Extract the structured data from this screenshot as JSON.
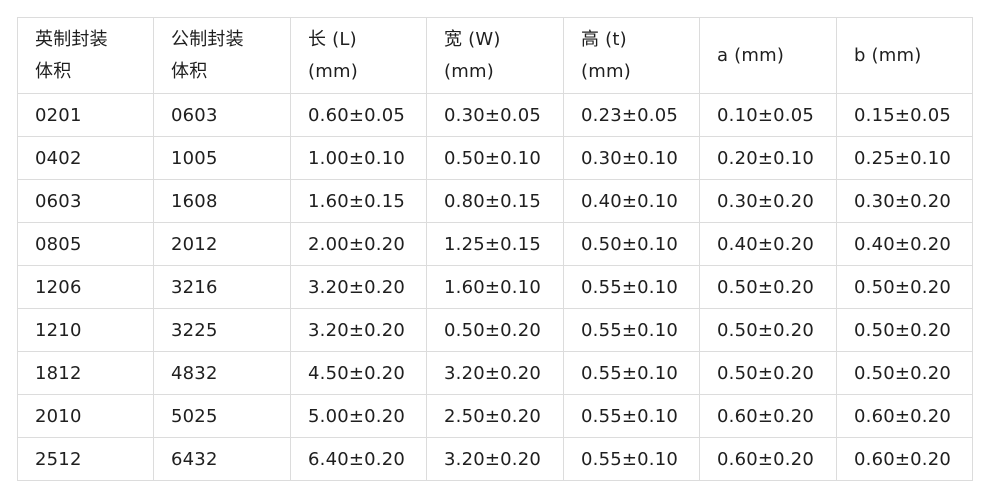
{
  "table": {
    "headers": [
      "英制封装\n体积",
      "公制封装\n体积",
      "长 (L)\n  (mm)",
      "宽 (W)\n  (mm)",
      "高 (t)\n  (mm)",
      "a (mm)",
      "b (mm)"
    ],
    "rows": [
      [
        "0201",
        "0603",
        "0.60±0.05",
        "0.30±0.05",
        "0.23±0.05",
        "0.10±0.05",
        "0.15±0.05"
      ],
      [
        "0402",
        "1005",
        "1.00±0.10",
        "0.50±0.10",
        "0.30±0.10",
        "0.20±0.10",
        "0.25±0.10"
      ],
      [
        "0603",
        "1608",
        "1.60±0.15",
        "0.80±0.15",
        "0.40±0.10",
        "0.30±0.20",
        "0.30±0.20"
      ],
      [
        "0805",
        "2012",
        "2.00±0.20",
        "1.25±0.15",
        "0.50±0.10",
        "0.40±0.20",
        "0.40±0.20"
      ],
      [
        "1206",
        "3216",
        "3.20±0.20",
        "1.60±0.10",
        "0.55±0.10",
        "0.50±0.20",
        "0.50±0.20"
      ],
      [
        "1210",
        "3225",
        "3.20±0.20",
        "0.50±0.20",
        "0.55±0.10",
        "0.50±0.20",
        "0.50±0.20"
      ],
      [
        "1812",
        "4832",
        "4.50±0.20",
        "3.20±0.20",
        "0.55±0.10",
        "0.50±0.20",
        "0.50±0.20"
      ],
      [
        "2010",
        "5025",
        "5.00±0.20",
        "2.50±0.20",
        "0.55±0.10",
        "0.60±0.20",
        "0.60±0.20"
      ],
      [
        "2512",
        "6432",
        "6.40±0.20",
        "3.20±0.20",
        "0.55±0.10",
        "0.60±0.20",
        "0.60±0.20"
      ]
    ]
  }
}
